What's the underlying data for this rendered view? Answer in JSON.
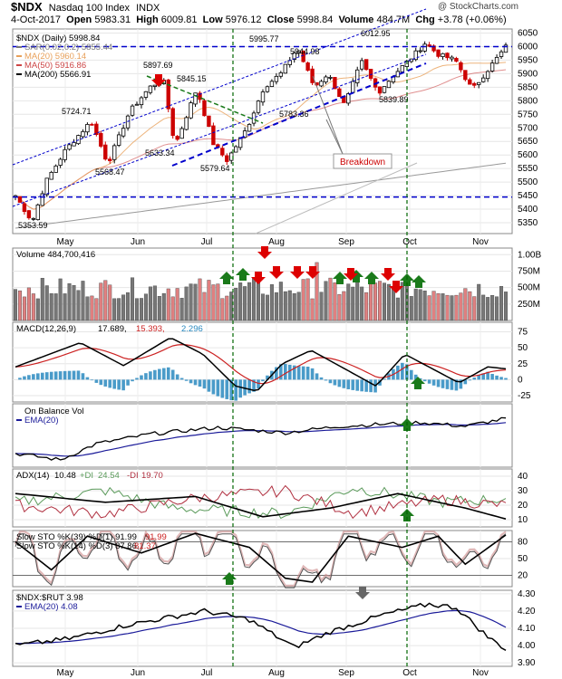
{
  "header": {
    "symbol": "$NDX",
    "index_name": "Nasdaq 100 Index",
    "exchange": "INDX",
    "copyright": "@ StockCharts.com",
    "date": "4-Oct-2017",
    "open_label": "Open",
    "open": "5983.31",
    "high_label": "High",
    "high": "6009.81",
    "low_label": "Low",
    "low": "5976.12",
    "close_label": "Close",
    "close": "5998.84",
    "volume_label": "Volume",
    "volume": "484.7M",
    "chg_label": "Chg",
    "chg": "+3.78 (+0.06%)"
  },
  "colors": {
    "up": "#000000",
    "down": "#cc0000",
    "ma20": "#e8a05a",
    "ma50": "#cc4444",
    "ma200": "#999999",
    "trend": "#0000cc",
    "green_arrow": "#1a7a1a",
    "red_arrow": "#dd0000",
    "grey_arrow": "#666666",
    "vline": "#006600",
    "macd_hist": "#2a8ac0",
    "ema": "#1a1a99",
    "di_plus": "#5a9a5a",
    "di_minus": "#b03040"
  },
  "chart_data": [
    {
      "type": "candlestick",
      "panel": "price",
      "legend": [
        "$NDX (Daily) 5998.84",
        "SAR(0.02,0.2) 5855.44",
        "MA(20) 5960.14",
        "MA(50) 5916.86",
        "MA(200) 5566.91"
      ],
      "y_ticks": [
        6050,
        6000,
        5950,
        5900,
        5850,
        5800,
        5750,
        5700,
        5650,
        5600,
        5550,
        5500,
        5450,
        5400,
        5350
      ],
      "ylim": [
        5310,
        6065
      ],
      "x_months": [
        "May",
        "Jun",
        "Jul",
        "Aug",
        "Sep",
        "Oct",
        "Nov"
      ],
      "key_points": [
        {
          "t": 0,
          "v": 5450
        },
        {
          "t": 10,
          "v": 5353.59
        },
        {
          "t": 18,
          "v": 5500
        },
        {
          "t": 30,
          "v": 5620
        },
        {
          "t": 45,
          "v": 5724.71
        },
        {
          "t": 55,
          "v": 5568.47
        },
        {
          "t": 68,
          "v": 5760
        },
        {
          "t": 80,
          "v": 5850
        },
        {
          "t": 88,
          "v": 5880
        },
        {
          "t": 95,
          "v": 5633.34
        },
        {
          "t": 108,
          "v": 5845.15
        },
        {
          "t": 118,
          "v": 5640
        },
        {
          "t": 126,
          "v": 5579.64
        },
        {
          "t": 138,
          "v": 5700
        },
        {
          "t": 148,
          "v": 5850
        },
        {
          "t": 158,
          "v": 5900
        },
        {
          "t": 168,
          "v": 5995.77
        },
        {
          "t": 178,
          "v": 5850
        },
        {
          "t": 186,
          "v": 5900
        },
        {
          "t": 196,
          "v": 5783.36
        },
        {
          "t": 206,
          "v": 5944.98
        },
        {
          "t": 216,
          "v": 5830
        },
        {
          "t": 226,
          "v": 5900
        },
        {
          "t": 236,
          "v": 5960
        },
        {
          "t": 244,
          "v": 6012.95
        },
        {
          "t": 252,
          "v": 5970
        },
        {
          "t": 262,
          "v": 5950
        },
        {
          "t": 272,
          "v": 5839.89
        },
        {
          "t": 282,
          "v": 5920
        },
        {
          "t": 292,
          "v": 5998.84
        }
      ],
      "price_labels": [
        "5353.59",
        "5724.71",
        "5568.47",
        "5897.69",
        "5845.15",
        "5633.34",
        "5579.64",
        "5995.77",
        "5944.98",
        "5783.36",
        "6012.95",
        "5839.89"
      ],
      "annotation": "Breakdown",
      "horizontal_levels": [
        6000,
        5445
      ]
    },
    {
      "type": "bar",
      "panel": "volume",
      "legend": "Volume 484,700,416",
      "y_ticks": [
        "1.00B",
        "750M",
        "500M",
        "250M"
      ],
      "ylim": [
        0,
        1100
      ]
    },
    {
      "type": "line",
      "panel": "macd",
      "legend": [
        "MACD(12,26,9)",
        "17.689,",
        "15.393,",
        "2.296"
      ],
      "y_ticks": [
        75,
        50,
        25,
        0,
        -25
      ],
      "ylim": [
        -35,
        90
      ]
    },
    {
      "type": "line",
      "panel": "obv",
      "legend": [
        "On Balance Vol",
        "EMA(20)"
      ]
    },
    {
      "type": "line",
      "panel": "adx",
      "legend": [
        "ADX(14)",
        "10.48",
        "+DI",
        "24.54",
        "-DI",
        "19.70"
      ],
      "y_ticks": [
        40,
        30,
        20,
        10
      ],
      "ylim": [
        5,
        45
      ]
    },
    {
      "type": "line",
      "panel": "stochastic",
      "legend": [
        "Slow STO %K(39) %D(1) 91.99",
        "91.99",
        "Slow STO %K(14) %D(3) 87.86,",
        "81.37"
      ],
      "y_ticks": [
        80,
        50,
        20
      ],
      "ylim": [
        0,
        100
      ]
    },
    {
      "type": "line",
      "panel": "ratio",
      "legend": [
        "$NDX:$RUT 3.98",
        "EMA(20) 4.08"
      ],
      "y_ticks": [
        "4.30",
        "4.20",
        "4.10",
        "4.00",
        "3.90"
      ],
      "ylim": [
        3.88,
        4.32
      ]
    }
  ]
}
